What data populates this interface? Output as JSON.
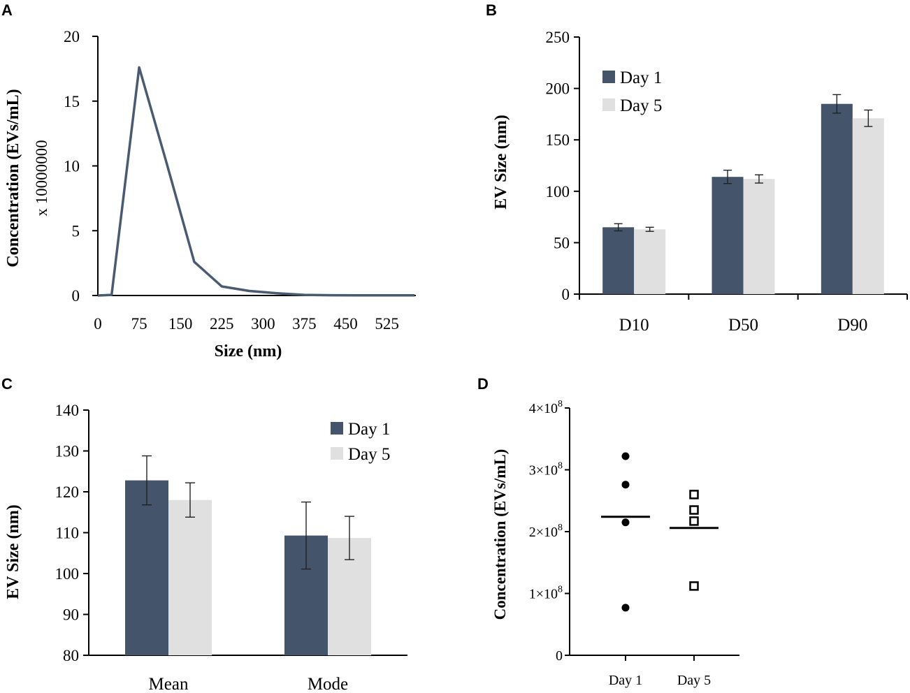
{
  "figure": {
    "panels": [
      "A",
      "B",
      "C",
      "D"
    ]
  },
  "chart_data": [
    {
      "id": "A",
      "type": "line",
      "title": "",
      "xlabel": "Size (nm)",
      "ylabel": "Concentration (EVs/mL)",
      "ylabel2": "x 10000000",
      "xlim": [
        0,
        575
      ],
      "ylim": [
        0,
        20
      ],
      "xticks": [
        0,
        75,
        150,
        225,
        300,
        375,
        450,
        525
      ],
      "yticks": [
        0,
        5,
        10,
        15,
        20
      ],
      "color": "#4a5a70",
      "x": [
        0,
        25,
        75,
        125,
        175,
        225,
        275,
        325,
        375,
        425,
        475,
        525,
        575
      ],
      "y": [
        0,
        0.05,
        17.6,
        10.2,
        2.6,
        0.7,
        0.35,
        0.18,
        0.05,
        0.02,
        0.01,
        0.01,
        0.01
      ]
    },
    {
      "id": "B",
      "type": "bar",
      "ylabel": "EV Size (nm)",
      "xlabel": "",
      "categories": [
        "D10",
        "D50",
        "D90"
      ],
      "ylim": [
        0,
        250
      ],
      "yticks": [
        0,
        50,
        100,
        150,
        200,
        250
      ],
      "series": [
        {
          "name": "Day 1",
          "color": "#44546a",
          "values": [
            65,
            114,
            185
          ],
          "errors": [
            3.5,
            6.5,
            9
          ]
        },
        {
          "name": "Day 5",
          "color": "#e0e0e0",
          "values": [
            63,
            112,
            171
          ],
          "errors": [
            2,
            4,
            8
          ]
        }
      ],
      "legend": "top-left"
    },
    {
      "id": "C",
      "type": "bar",
      "ylabel": "EV Size (nm)",
      "xlabel": "",
      "categories": [
        "Mean",
        "Mode"
      ],
      "ylim": [
        80,
        140
      ],
      "yticks": [
        80,
        90,
        100,
        110,
        120,
        130,
        140
      ],
      "series": [
        {
          "name": "Day 1",
          "color": "#44546a",
          "values": [
            122.8,
            109.3
          ],
          "errors": [
            6,
            8.2
          ]
        },
        {
          "name": "Day 5",
          "color": "#e0e0e0",
          "values": [
            118.0,
            108.7
          ],
          "errors": [
            4.2,
            5.3
          ]
        }
      ],
      "legend": "top-right"
    },
    {
      "id": "D",
      "type": "scatter",
      "ylabel": "Concentration (EVs/mL)",
      "xlabel": "",
      "categories": [
        "Day 1",
        "Day 5"
      ],
      "ylim": [
        0,
        400000000
      ],
      "yticks": [
        {
          "value": 0,
          "label": "0",
          "exp": ""
        },
        {
          "value": 100000000,
          "label": "1×10",
          "exp": "8"
        },
        {
          "value": 200000000,
          "label": "2×10",
          "exp": "8"
        },
        {
          "value": 300000000,
          "label": "3×10",
          "exp": "8"
        },
        {
          "value": 400000000,
          "label": "4×10",
          "exp": "8"
        }
      ],
      "groups": [
        {
          "name": "Day 1",
          "marker": "filled-circle",
          "values": [
            322000000,
            276000000,
            215000000,
            77000000
          ],
          "mean": 224000000
        },
        {
          "name": "Day 5",
          "marker": "open-square",
          "values": [
            260000000,
            235000000,
            217000000,
            112000000
          ],
          "mean": 206000000
        }
      ]
    }
  ]
}
